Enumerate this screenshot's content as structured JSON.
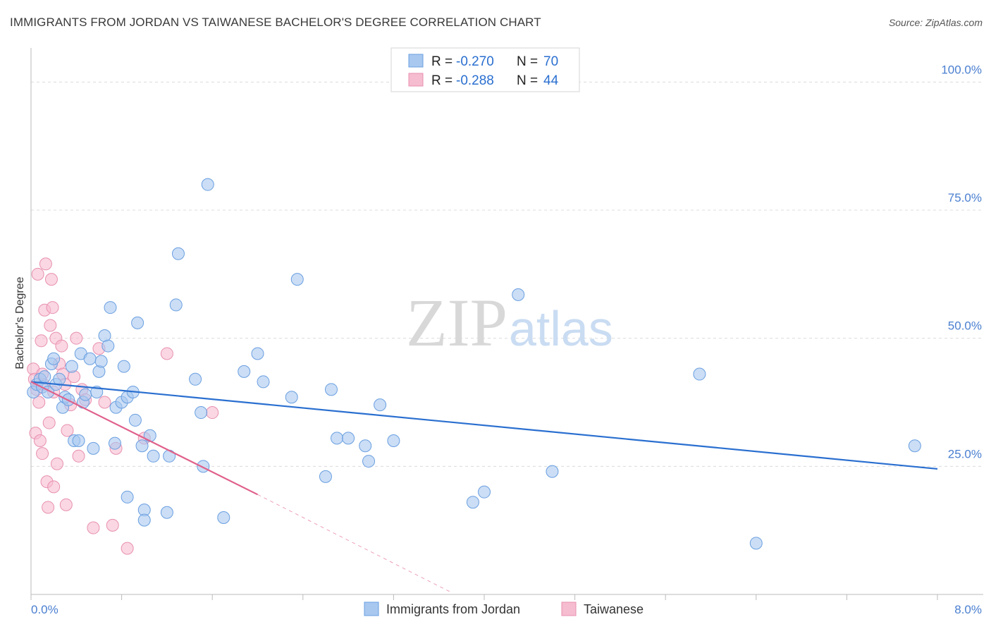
{
  "title": "IMMIGRANTS FROM JORDAN VS TAIWANESE BACHELOR'S DEGREE CORRELATION CHART",
  "source": "Source: ZipAtlas.com",
  "watermark": {
    "zip": "ZIP",
    "atlas": "atlas"
  },
  "colors": {
    "blue_fill": "#a8c8f0",
    "blue_stroke": "#6a9fe0",
    "blue_line": "#2a6fd0",
    "pink_fill": "#f6bcd0",
    "pink_stroke": "#e890b0",
    "pink_line": "#e0608a",
    "axis_text": "#4a7fd0",
    "grid": "#dcdcdc"
  },
  "legend": {
    "rows": [
      {
        "r_label": "R = ",
        "r_value": "-0.270",
        "n_label": "N = ",
        "n_value": "70"
      },
      {
        "r_label": "R = ",
        "r_value": "-0.288",
        "n_label": "N = ",
        "n_value": "44"
      }
    ]
  },
  "chart_data": {
    "type": "scatter",
    "xlabel": "",
    "ylabel": "Bachelor's Degree",
    "xlim": [
      0,
      8
    ],
    "ylim": [
      0,
      105
    ],
    "x_tick_labels": [
      "0.0%",
      "8.0%"
    ],
    "y_ticks": [
      25,
      50,
      75,
      100
    ],
    "y_tick_labels": [
      "25.0%",
      "50.0%",
      "75.0%",
      "100.0%"
    ],
    "series": [
      {
        "name": "Immigrants from Jordan",
        "trend": {
          "x0": 0.0,
          "y0": 41.5,
          "x1": 8.0,
          "y1": 24.5
        },
        "points": [
          [
            0.02,
            39.5
          ],
          [
            0.05,
            41
          ],
          [
            0.08,
            42
          ],
          [
            0.1,
            40.5
          ],
          [
            0.12,
            42.5
          ],
          [
            0.15,
            39.5
          ],
          [
            0.18,
            45
          ],
          [
            0.2,
            46
          ],
          [
            0.22,
            41
          ],
          [
            0.25,
            42
          ],
          [
            0.28,
            36.5
          ],
          [
            0.3,
            38.5
          ],
          [
            0.33,
            38
          ],
          [
            0.36,
            44.5
          ],
          [
            0.38,
            30
          ],
          [
            0.42,
            30
          ],
          [
            0.44,
            47
          ],
          [
            0.46,
            37.5
          ],
          [
            0.48,
            39
          ],
          [
            0.52,
            46
          ],
          [
            0.55,
            28.5
          ],
          [
            0.58,
            39.5
          ],
          [
            0.6,
            43.5
          ],
          [
            0.62,
            45.5
          ],
          [
            0.65,
            50.5
          ],
          [
            0.68,
            48.5
          ],
          [
            0.7,
            56
          ],
          [
            0.74,
            29.5
          ],
          [
            0.75,
            36.5
          ],
          [
            0.8,
            37.5
          ],
          [
            0.82,
            44.5
          ],
          [
            0.85,
            38.5
          ],
          [
            0.9,
            39.5
          ],
          [
            0.92,
            34
          ],
          [
            0.94,
            53
          ],
          [
            0.98,
            29
          ],
          [
            1.0,
            16.5
          ],
          [
            1.05,
            31
          ],
          [
            1.08,
            27
          ],
          [
            1.2,
            16
          ],
          [
            1.22,
            27
          ],
          [
            1.28,
            56.5
          ],
          [
            1.3,
            66.5
          ],
          [
            1.45,
            42
          ],
          [
            1.5,
            35.5
          ],
          [
            1.52,
            25
          ],
          [
            1.56,
            80
          ],
          [
            1.7,
            15
          ],
          [
            1.88,
            43.5
          ],
          [
            2.0,
            47
          ],
          [
            2.05,
            41.5
          ],
          [
            2.3,
            38.5
          ],
          [
            2.35,
            61.5
          ],
          [
            2.6,
            23
          ],
          [
            2.65,
            40
          ],
          [
            2.7,
            30.5
          ],
          [
            2.8,
            30.5
          ],
          [
            2.95,
            29
          ],
          [
            2.98,
            26
          ],
          [
            3.08,
            37
          ],
          [
            3.2,
            30
          ],
          [
            3.9,
            18
          ],
          [
            4.0,
            20
          ],
          [
            4.3,
            58.5
          ],
          [
            4.6,
            24
          ],
          [
            5.9,
            43
          ],
          [
            6.4,
            10
          ],
          [
            7.8,
            29
          ],
          [
            1.0,
            14.5
          ],
          [
            0.85,
            19
          ]
        ]
      },
      {
        "name": "Taiwanese",
        "trend": {
          "x0": 0.0,
          "y0": 41.5,
          "x1": 2.0,
          "y1": 19.5
        },
        "trend_extension": {
          "x0": 2.0,
          "y0": 19.5,
          "x1": 3.7,
          "y1": 0.5
        },
        "points": [
          [
            0.02,
            44
          ],
          [
            0.03,
            42
          ],
          [
            0.04,
            31.5
          ],
          [
            0.05,
            40
          ],
          [
            0.06,
            62.5
          ],
          [
            0.07,
            37.5
          ],
          [
            0.08,
            30
          ],
          [
            0.09,
            49.5
          ],
          [
            0.1,
            27.5
          ],
          [
            0.11,
            41
          ],
          [
            0.12,
            55.5
          ],
          [
            0.13,
            64.5
          ],
          [
            0.14,
            22
          ],
          [
            0.15,
            17
          ],
          [
            0.16,
            33.5
          ],
          [
            0.17,
            52.5
          ],
          [
            0.18,
            61.5
          ],
          [
            0.19,
            56
          ],
          [
            0.2,
            21
          ],
          [
            0.22,
            50
          ],
          [
            0.23,
            25.5
          ],
          [
            0.25,
            45
          ],
          [
            0.27,
            48.5
          ],
          [
            0.28,
            43
          ],
          [
            0.3,
            41
          ],
          [
            0.31,
            17.5
          ],
          [
            0.32,
            32
          ],
          [
            0.35,
            37
          ],
          [
            0.38,
            42.5
          ],
          [
            0.4,
            50
          ],
          [
            0.42,
            27
          ],
          [
            0.45,
            40
          ],
          [
            0.48,
            38
          ],
          [
            0.55,
            13
          ],
          [
            0.6,
            48
          ],
          [
            0.65,
            37.5
          ],
          [
            0.72,
            13.5
          ],
          [
            0.75,
            28.5
          ],
          [
            0.85,
            9
          ],
          [
            1.0,
            30.5
          ],
          [
            1.2,
            47
          ],
          [
            1.6,
            35.5
          ],
          [
            0.1,
            43
          ],
          [
            0.2,
            39.5
          ]
        ]
      }
    ]
  },
  "bottom_legend": [
    "Immigrants from Jordan",
    "Taiwanese"
  ]
}
